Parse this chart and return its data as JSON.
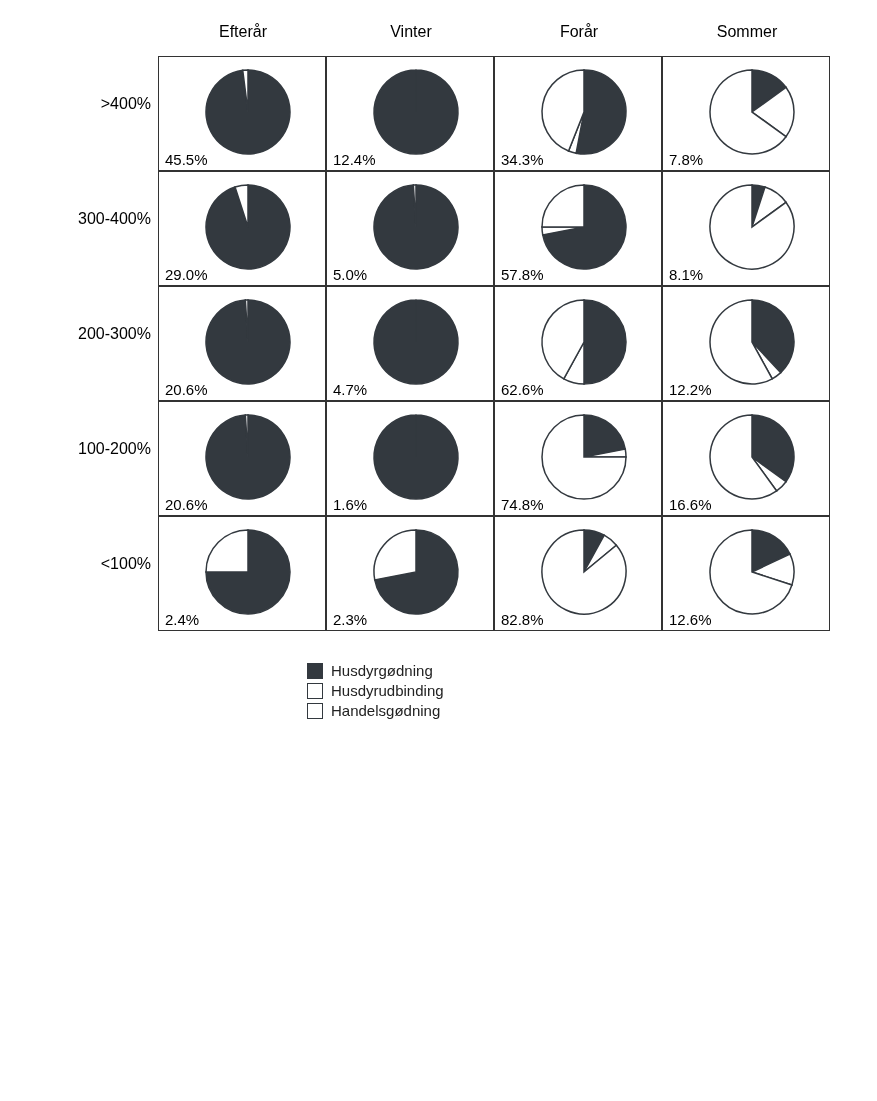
{
  "chart_data": [
    {
      "type": "pie",
      "title": "Efterår",
      "ylabel": ">400%",
      "categories": [
        null,
        null,
        null
      ],
      "values": [
        98,
        0,
        2
      ],
      "colors": [
        "#33393f",
        "#ffffff",
        "#ffffff"
      ],
      "annotations": [
        "45.5%"
      ]
    },
    {
      "type": "pie",
      "title": "Vinter",
      "categories": [
        null,
        null,
        null
      ],
      "values": [
        100,
        0,
        0
      ],
      "colors": [
        "#33393f",
        "#ffffff",
        "#ffffff"
      ],
      "annotations": [
        "12.4%"
      ]
    },
    {
      "type": "pie",
      "title": "Forår",
      "categories": [
        null,
        null,
        null
      ],
      "values": [
        53,
        3,
        44
      ],
      "colors": [
        "#33393f",
        "#ffffff",
        "#ffffff"
      ],
      "annotations": [
        "34.3%"
      ]
    },
    {
      "type": "pie",
      "title": "Sommer",
      "categories": [
        null,
        null,
        null
      ],
      "values": [
        15,
        20,
        65
      ],
      "colors": [
        "#33393f",
        "#ffffff",
        "#ffffff"
      ],
      "annotations": [
        "7.8%"
      ]
    },
    {
      "type": "pie",
      "ylabel": "300-400%",
      "categories": [
        null,
        null,
        null
      ],
      "values": [
        95,
        0,
        5
      ],
      "colors": [
        "#33393f",
        "#ffffff",
        "#ffffff"
      ],
      "annotations": [
        "29.0%"
      ]
    },
    {
      "type": "pie",
      "categories": [
        null,
        null,
        null
      ],
      "values": [
        99,
        0,
        1
      ],
      "colors": [
        "#33393f",
        "#ffffff",
        "#ffffff"
      ],
      "annotations": [
        "5.0%"
      ]
    },
    {
      "type": "pie",
      "categories": [
        null,
        null,
        null
      ],
      "values": [
        72,
        3,
        25
      ],
      "colors": [
        "#33393f",
        "#ffffff",
        "#ffffff"
      ],
      "annotations": [
        "57.8%"
      ]
    },
    {
      "type": "pie",
      "categories": [
        null,
        null,
        null
      ],
      "values": [
        5,
        10,
        85
      ],
      "colors": [
        "#33393f",
        "#ffffff",
        "#ffffff"
      ],
      "annotations": [
        "8.1%"
      ]
    },
    {
      "type": "pie",
      "ylabel": "200-300%",
      "categories": [
        null,
        null,
        null
      ],
      "values": [
        99,
        0,
        1
      ],
      "colors": [
        "#33393f",
        "#ffffff",
        "#ffffff"
      ],
      "annotations": [
        "20.6%"
      ]
    },
    {
      "type": "pie",
      "categories": [
        null,
        null,
        null
      ],
      "values": [
        100,
        0,
        0
      ],
      "colors": [
        "#33393f",
        "#ffffff",
        "#ffffff"
      ],
      "annotations": [
        "4.7%"
      ]
    },
    {
      "type": "pie",
      "categories": [
        null,
        null,
        null
      ],
      "values": [
        50,
        8,
        42
      ],
      "colors": [
        "#33393f",
        "#ffffff",
        "#ffffff"
      ],
      "annotations": [
        "62.6%"
      ]
    },
    {
      "type": "pie",
      "categories": [
        null,
        null,
        null
      ],
      "values": [
        38,
        4,
        58
      ],
      "colors": [
        "#33393f",
        "#ffffff",
        "#ffffff"
      ],
      "annotations": [
        "12.2%"
      ]
    },
    {
      "type": "pie",
      "ylabel": "100-200%",
      "categories": [
        null,
        null,
        null
      ],
      "values": [
        99,
        0,
        1
      ],
      "colors": [
        "#33393f",
        "#ffffff",
        "#ffffff"
      ],
      "annotations": [
        "20.6%"
      ]
    },
    {
      "type": "pie",
      "categories": [
        null,
        null,
        null
      ],
      "values": [
        100,
        0,
        0
      ],
      "colors": [
        "#33393f",
        "#ffffff",
        "#ffffff"
      ],
      "annotations": [
        "1.6%"
      ]
    },
    {
      "type": "pie",
      "categories": [
        null,
        null,
        null
      ],
      "values": [
        22,
        3,
        75
      ],
      "colors": [
        "#33393f",
        "#ffffff",
        "#ffffff"
      ],
      "annotations": [
        "74.8%"
      ]
    },
    {
      "type": "pie",
      "categories": [
        null,
        null,
        null
      ],
      "values": [
        35,
        5,
        60
      ],
      "colors": [
        "#33393f",
        "#ffffff",
        "#ffffff"
      ],
      "annotations": [
        "16.6%"
      ]
    },
    {
      "type": "pie",
      "ylabel": "<100%",
      "categories": [
        null,
        null,
        null
      ],
      "values": [
        75,
        0,
        25
      ],
      "colors": [
        "#33393f",
        "#ffffff",
        "#ffffff"
      ],
      "annotations": [
        "2.4%"
      ]
    },
    {
      "type": "pie",
      "legend": "bottom",
      "categories": [
        "Husdyrgødning",
        "Husdyrudbinding",
        "Handelsgødning"
      ],
      "values": [
        72,
        0,
        28
      ],
      "colors": [
        "#33393f",
        "#ffffff",
        "#ffffff"
      ],
      "annotations": [
        "2.3%"
      ]
    },
    {
      "type": "pie",
      "categories": [
        null,
        null,
        null
      ],
      "values": [
        8,
        6,
        86
      ],
      "colors": [
        "#33393f",
        "#ffffff",
        "#ffffff"
      ],
      "annotations": [
        "82.8%"
      ]
    },
    {
      "type": "pie",
      "categories": [
        null,
        null,
        null
      ],
      "values": [
        18,
        12,
        70
      ],
      "colors": [
        "#33393f",
        "#ffffff",
        "#ffffff"
      ],
      "annotations": [
        "12.6%"
      ]
    }
  ]
}
